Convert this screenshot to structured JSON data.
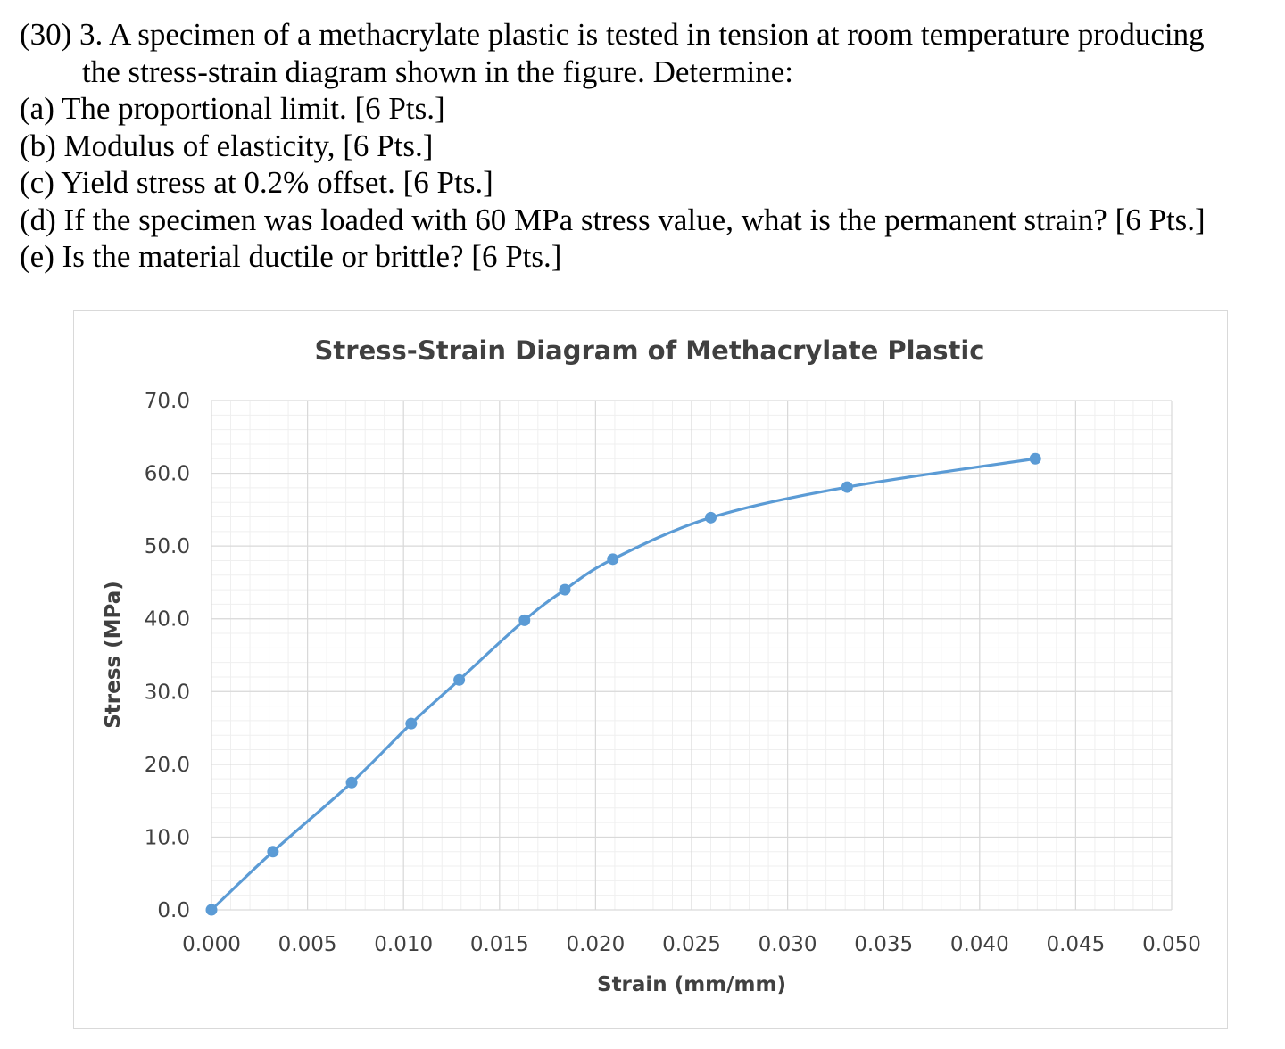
{
  "problem": {
    "lines": [
      "(30) 3.  A specimen of a methacrylate plastic is tested in tension at room temperature producing",
      "the stress-strain diagram shown in the figure.  Determine:",
      "(a)  The proportional limit. [6 Pts.]",
      "(b)  Modulus of elasticity, [6 Pts.]",
      "(c)  Yield stress at 0.2% offset. [6 Pts.]",
      "(d)  If the specimen was loaded with 60 MPa stress value, what is the permanent strain? [6 Pts.]",
      "(e)  Is the material ductile or brittle? [6 Pts.]"
    ]
  },
  "chart_data": {
    "type": "scatter",
    "title": "Stress-Strain Diagram of Methacrylate Plastic",
    "xlabel": "Strain (mm/mm)",
    "ylabel": "Stress (MPa)",
    "xlim": [
      0,
      0.05
    ],
    "ylim": [
      0,
      70
    ],
    "x_ticks": [
      "0.000",
      "0.005",
      "0.010",
      "0.015",
      "0.020",
      "0.025",
      "0.030",
      "0.035",
      "0.040",
      "0.045",
      "0.050"
    ],
    "y_ticks": [
      "0.0",
      "10.0",
      "20.0",
      "30.0",
      "40.0",
      "50.0",
      "60.0",
      "70.0"
    ],
    "grid": true,
    "series": [
      {
        "x": [
          0.0,
          0.0032,
          0.0073,
          0.0104,
          0.0129,
          0.0163,
          0.0184,
          0.0209,
          0.026,
          0.0331,
          0.0429
        ],
        "y": [
          0.0,
          8.0,
          17.5,
          25.6,
          31.6,
          39.8,
          44.0,
          48.2,
          53.9,
          58.1,
          62.0
        ],
        "color": "#5b9bd5"
      }
    ]
  }
}
